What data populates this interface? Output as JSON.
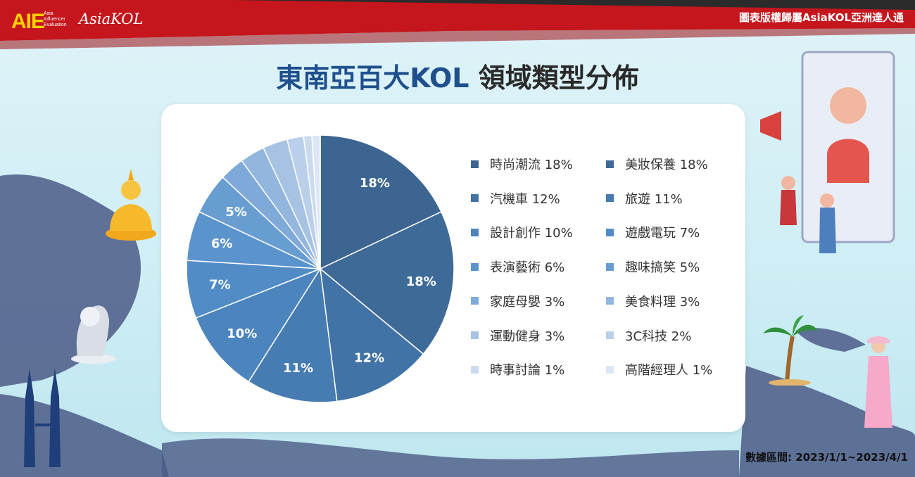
{
  "header": {
    "logo_aie": "AIE",
    "logo_aie_sub": [
      "Asia",
      "Influencer",
      "Evaluation"
    ],
    "logo_asiakol": "AsiaKOL",
    "copyright": "圖表版權歸屬AsiaKOL亞洲達人通"
  },
  "title": {
    "accent": "東南亞百大KOL",
    "rest": "領域類型分佈"
  },
  "footnote": "數據區間: 2023/1/1~2023/4/1",
  "colors": {
    "header_red": "#c4161c",
    "header_dark": "#2b2b2b",
    "title_accent": "#1f4f8c"
  },
  "chart_data": {
    "type": "pie",
    "title": "東南亞百大KOL 領域類型分佈",
    "slices": [
      {
        "label": "時尚潮流",
        "value": 18,
        "legend": "時尚潮流 18%",
        "data_label": "18%",
        "color": "#3c6591"
      },
      {
        "label": "美妝保養",
        "value": 18,
        "legend": "美妝保養 18%",
        "data_label": "18%",
        "color": "#3e6a98"
      },
      {
        "label": "汽機車",
        "value": 12,
        "legend": "汽機車 12%",
        "data_label": "12%",
        "color": "#4273a6"
      },
      {
        "label": "旅遊",
        "value": 11,
        "legend": "旅遊 11%",
        "data_label": "11%",
        "color": "#467cb2"
      },
      {
        "label": "設計創作",
        "value": 10,
        "legend": "設計創作 10%",
        "data_label": "10%",
        "color": "#4c84bd"
      },
      {
        "label": "遊戲電玩",
        "value": 7,
        "legend": "遊戲電玩 7%",
        "data_label": "7%",
        "color": "#528cc6"
      },
      {
        "label": "表演藝術",
        "value": 6,
        "legend": "表演藝術 6%",
        "data_label": "6%",
        "color": "#5b94cd"
      },
      {
        "label": "趣味搞笑",
        "value": 5,
        "legend": "趣味搞笑 5%",
        "data_label": "5%",
        "color": "#689dd2"
      },
      {
        "label": "家庭母嬰",
        "value": 3,
        "legend": "家庭母嬰 3%",
        "data_label": "",
        "color": "#7ea9d8"
      },
      {
        "label": "美食料理",
        "value": 3,
        "legend": "美食料理 3%",
        "data_label": "",
        "color": "#93b6de"
      },
      {
        "label": "運動健身",
        "value": 3,
        "legend": "運動健身 3%",
        "data_label": "",
        "color": "#a7c3e4"
      },
      {
        "label": "3C科技",
        "value": 2,
        "legend": "3C科技 2%",
        "data_label": "",
        "color": "#b9cfea"
      },
      {
        "label": "時事討論",
        "value": 1,
        "legend": "時事討論 1%",
        "data_label": "",
        "color": "#cbdbef"
      },
      {
        "label": "高階經理人",
        "value": 1,
        "legend": "高階經理人 1%",
        "data_label": "",
        "color": "#dce6f4"
      }
    ],
    "legend_position": "right",
    "legend_columns": 2
  }
}
